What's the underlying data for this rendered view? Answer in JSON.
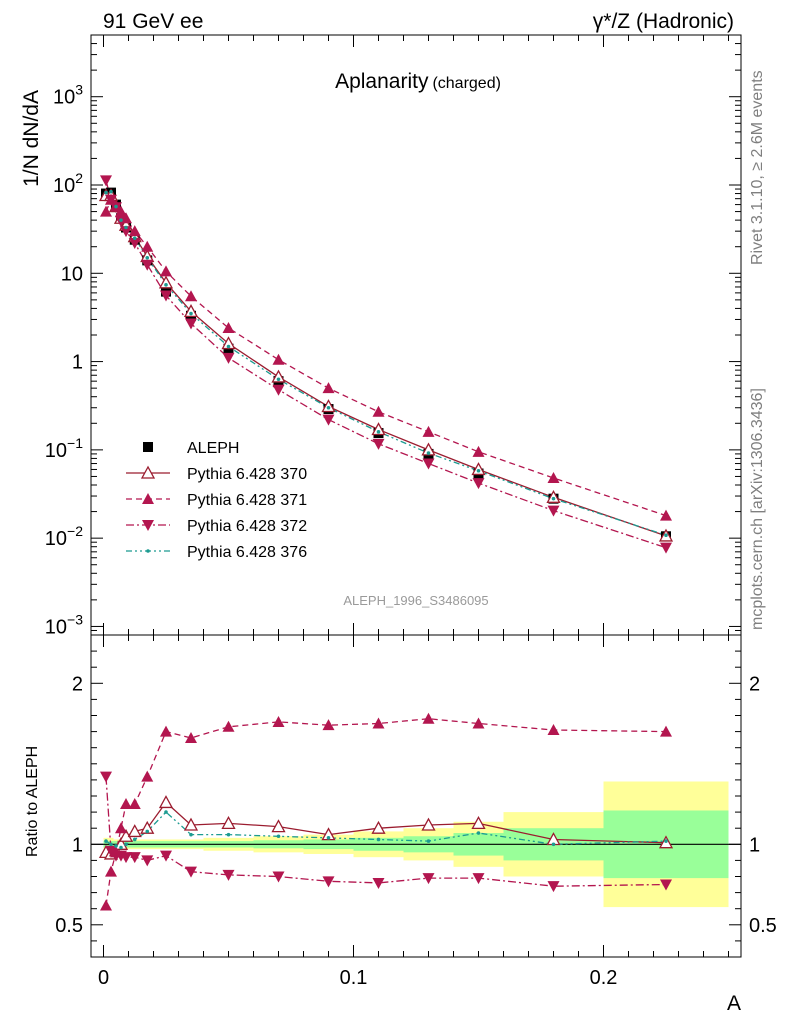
{
  "header": {
    "left": "91 GeV ee",
    "right": "γ*/Z (Hadronic)"
  },
  "side_text": {
    "rivet": "Rivet 3.1.10, ≥ 2.6M events",
    "mcplots": "mcplots.cern.ch [arXiv:1306.3436]"
  },
  "chart_data": [
    {
      "type": "line",
      "panel": "main",
      "title": "Aplanarity",
      "title_sub": "(charged)",
      "ylabel": "1/N dN/dA",
      "xlabel": "",
      "xlim": [
        -0.005,
        0.255
      ],
      "ylim": [
        0.0008,
        5000
      ],
      "yscale": "log",
      "x_ticks": [
        {
          "v": 0,
          "label": "0"
        },
        {
          "v": 0.1,
          "label": "0.1"
        },
        {
          "v": 0.2,
          "label": "0.2"
        }
      ],
      "y_ticks": [
        {
          "v": 0.001,
          "base": "10",
          "exp": "−3"
        },
        {
          "v": 0.01,
          "base": "10",
          "exp": "−2"
        },
        {
          "v": 0.1,
          "base": "10",
          "exp": "−1"
        },
        {
          "v": 1,
          "base": "1",
          "exp": ""
        },
        {
          "v": 10,
          "base": "10",
          "exp": ""
        },
        {
          "v": 100,
          "base": "10",
          "exp": "2"
        },
        {
          "v": 1000,
          "base": "10",
          "exp": "3"
        }
      ],
      "watermark": "ALEPH_1996_S3486095",
      "legend_position": "bottom-left",
      "x": [
        0.001,
        0.003,
        0.005,
        0.007,
        0.009,
        0.0125,
        0.0175,
        0.025,
        0.035,
        0.05,
        0.07,
        0.09,
        0.11,
        0.13,
        0.15,
        0.18,
        0.225
      ],
      "series": [
        {
          "name": "ALEPH",
          "style": "data",
          "color": "#000000",
          "values": [
            80,
            82,
            60,
            42,
            33,
            24,
            14,
            6.2,
            3.3,
            1.4,
            0.6,
            0.29,
            0.155,
            0.09,
            0.054,
            0.028,
            0.0105
          ]
        },
        {
          "name": "Pythia 6.428 370",
          "style": "solid",
          "color": "#9b1c2f",
          "marker": "open-triangle-up",
          "values": [
            76,
            76,
            57,
            42,
            35,
            26,
            15.5,
            7.8,
            3.7,
            1.6,
            0.67,
            0.31,
            0.17,
            0.1,
            0.06,
            0.029,
            0.0106
          ]
        },
        {
          "name": "Pythia 6.428 371",
          "style": "dashed",
          "color": "#b3164f",
          "marker": "filled-triangle-up",
          "values": [
            50,
            68,
            57,
            50,
            42,
            30,
            20,
            10.5,
            5.5,
            2.4,
            1.05,
            0.5,
            0.27,
            0.16,
            0.095,
            0.048,
            0.018
          ]
        },
        {
          "name": "Pythia 6.428 372",
          "style": "dashdot",
          "color": "#b3164f",
          "marker": "filled-triangle-down",
          "values": [
            113,
            68,
            56,
            39,
            30,
            22,
            12.5,
            5.6,
            2.7,
            1.1,
            0.48,
            0.22,
            0.117,
            0.07,
            0.042,
            0.0205,
            0.0078
          ]
        },
        {
          "name": "Pythia 6.428 376",
          "style": "dashdotdot",
          "color": "#1c9b91",
          "marker": "dot",
          "values": [
            82,
            84,
            57,
            40,
            33,
            25,
            15,
            7.4,
            3.5,
            1.48,
            0.63,
            0.3,
            0.16,
            0.092,
            0.058,
            0.028,
            0.0108
          ]
        }
      ]
    },
    {
      "type": "line",
      "panel": "ratio",
      "ylabel": "Ratio to ALEPH",
      "xlabel": "A",
      "xlim": [
        -0.005,
        0.255
      ],
      "ylim": [
        0.3,
        2.3
      ],
      "x_ticks": [
        {
          "v": 0,
          "label": "0"
        },
        {
          "v": 0.1,
          "label": "0.1"
        },
        {
          "v": 0.2,
          "label": "0.2"
        }
      ],
      "y_ticks": [
        {
          "v": 0.5,
          "label": "0.5"
        },
        {
          "v": 1,
          "label": "1"
        },
        {
          "v": 2,
          "label": "2"
        }
      ],
      "band_bins": [
        {
          "lo": 0.0,
          "hi": 0.002,
          "in": 0.02,
          "out": 0.04
        },
        {
          "lo": 0.002,
          "hi": 0.004,
          "in": 0.02,
          "out": 0.04
        },
        {
          "lo": 0.004,
          "hi": 0.006,
          "in": 0.02,
          "out": 0.03
        },
        {
          "lo": 0.006,
          "hi": 0.008,
          "in": 0.02,
          "out": 0.03
        },
        {
          "lo": 0.008,
          "hi": 0.01,
          "in": 0.02,
          "out": 0.03
        },
        {
          "lo": 0.01,
          "hi": 0.015,
          "in": 0.02,
          "out": 0.03
        },
        {
          "lo": 0.015,
          "hi": 0.02,
          "in": 0.02,
          "out": 0.03
        },
        {
          "lo": 0.02,
          "hi": 0.03,
          "in": 0.02,
          "out": 0.03
        },
        {
          "lo": 0.03,
          "hi": 0.04,
          "in": 0.02,
          "out": 0.03
        },
        {
          "lo": 0.04,
          "hi": 0.06,
          "in": 0.02,
          "out": 0.04
        },
        {
          "lo": 0.06,
          "hi": 0.08,
          "in": 0.025,
          "out": 0.05
        },
        {
          "lo": 0.08,
          "hi": 0.1,
          "in": 0.03,
          "out": 0.06
        },
        {
          "lo": 0.1,
          "hi": 0.12,
          "in": 0.04,
          "out": 0.08
        },
        {
          "lo": 0.12,
          "hi": 0.14,
          "in": 0.05,
          "out": 0.1
        },
        {
          "lo": 0.14,
          "hi": 0.16,
          "in": 0.07,
          "out": 0.14
        },
        {
          "lo": 0.16,
          "hi": 0.2,
          "in": 0.1,
          "out": 0.2
        },
        {
          "lo": 0.2,
          "hi": 0.25,
          "in": 0.21,
          "out": 0.39
        }
      ],
      "series": [
        {
          "name": "Pythia 6.428 370",
          "style": "solid",
          "color": "#9b1c2f",
          "marker": "open-triangle-up",
          "values": [
            0.95,
            0.94,
            0.96,
            1.0,
            1.05,
            1.08,
            1.1,
            1.26,
            1.12,
            1.13,
            1.11,
            1.06,
            1.1,
            1.12,
            1.13,
            1.03,
            1.01
          ]
        },
        {
          "name": "Pythia 6.428 371",
          "style": "dashed",
          "color": "#b3164f",
          "marker": "filled-triangle-up",
          "values": [
            0.62,
            0.83,
            0.95,
            1.1,
            1.25,
            1.25,
            1.42,
            1.7,
            1.66,
            1.73,
            1.76,
            1.74,
            1.75,
            1.78,
            1.75,
            1.71,
            1.7
          ]
        },
        {
          "name": "Pythia 6.428 372",
          "style": "dashdot",
          "color": "#b3164f",
          "marker": "filled-triangle-down",
          "values": [
            1.42,
            0.96,
            0.93,
            0.93,
            0.92,
            0.92,
            0.9,
            0.93,
            0.83,
            0.81,
            0.8,
            0.77,
            0.76,
            0.79,
            0.79,
            0.74,
            0.75
          ]
        },
        {
          "name": "Pythia 6.428 376",
          "style": "dashdotdot",
          "color": "#1c9b91",
          "marker": "dot",
          "values": [
            1.02,
            1.0,
            0.99,
            0.98,
            1.0,
            1.03,
            1.08,
            1.2,
            1.06,
            1.06,
            1.05,
            1.04,
            1.03,
            1.02,
            1.07,
            1.0,
            1.02
          ]
        }
      ]
    }
  ]
}
